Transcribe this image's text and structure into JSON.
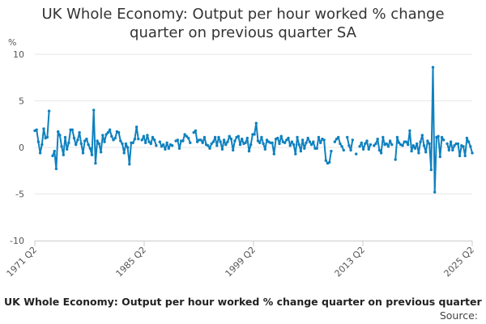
{
  "colors": {
    "series": "#0f81bf",
    "gridline": "#e6e6e6",
    "axis": "#cccccc",
    "tick_label": "#555555"
  },
  "footer": {
    "title": "UK Whole Economy: Output per hour worked % change quarter on previous quarter",
    "source_label": "Source:"
  },
  "chart_data": {
    "type": "line",
    "title": [
      "UK Whole Economy: Output per hour worked % change",
      "quarter on previous quarter SA"
    ],
    "ylabel": "%",
    "xlabel": "",
    "ylim": [
      -10,
      10
    ],
    "yticks": [
      10,
      5,
      0,
      -5,
      -10
    ],
    "x_tick_labels": [
      "1971 Q2",
      "1985 Q2",
      "1999 Q2",
      "2013 Q2",
      "2025 Q2"
    ],
    "x_start": "1971 Q2",
    "x_end": "2025 Q2",
    "grid": true,
    "legend": "none",
    "series": [
      {
        "values": [
          1.8,
          1.9,
          0.6,
          -0.6,
          0.3,
          2.0,
          1.0,
          1.1,
          3.9,
          null,
          -0.9,
          -0.4,
          -2.3,
          1.7,
          1.3,
          0.1,
          -0.8,
          1.1,
          -0.2,
          0.5,
          1.9,
          1.9,
          1.0,
          0.3,
          0.8,
          1.6,
          0.4,
          -0.6,
          0.7,
          0.9,
          0.3,
          -0.1,
          -0.8,
          4.0,
          -1.7,
          0.7,
          0.4,
          -0.5,
          1.3,
          0.6,
          1.4,
          1.6,
          1.9,
          1.2,
          0.8,
          1.0,
          1.7,
          1.6,
          0.7,
          0.4,
          -0.6,
          0.4,
          0.0,
          -1.8,
          0.5,
          0.5,
          0.9,
          2.2,
          0.9,
          null,
          0.8,
          1.2,
          0.5,
          1.3,
          0.6,
          0.4,
          1.1,
          0.8,
          0.2,
          null,
          0.6,
          0.1,
          0.3,
          -0.2,
          0.5,
          -0.1,
          0.3,
          0.2,
          null,
          0.7,
          0.8,
          -0.1,
          0.7,
          0.7,
          1.4,
          1.2,
          1.0,
          0.5,
          null,
          1.6,
          1.8,
          0.6,
          0.8,
          0.8,
          0.5,
          1.1,
          0.3,
          0.2,
          -0.1,
          0.4,
          0.6,
          1.1,
          0.2,
          1.1,
          0.6,
          -0.2,
          0.8,
          0.3,
          0.6,
          1.2,
          0.9,
          -0.3,
          0.7,
          1.1,
          1.2,
          0.3,
          0.9,
          0.4,
          0.5,
          1.0,
          -0.4,
          0.3,
          1.4,
          1.4,
          2.6,
          0.7,
          0.5,
          1.1,
          0.4,
          -0.2,
          0.8,
          0.6,
          0.5,
          0.5,
          -0.7,
          0.9,
          1.0,
          0.4,
          1.2,
          0.6,
          0.5,
          0.8,
          1.0,
          0.2,
          0.6,
          0.3,
          -0.7,
          1.1,
          0.3,
          -0.4,
          0.8,
          -0.1,
          0.5,
          1.0,
          0.6,
          0.3,
          0.6,
          -0.1,
          -0.1,
          1.1,
          0.5,
          0.9,
          0.8,
          -1.4,
          -1.7,
          -1.6,
          -0.4,
          null,
          0.6,
          0.9,
          1.1,
          0.4,
          0.1,
          -0.3,
          null,
          1.1,
          0.2,
          -0.3,
          0.8,
          null,
          -0.7,
          null,
          0.1,
          0.5,
          -0.2,
          0.4,
          0.7,
          -0.2,
          0.3,
          null,
          0.2,
          0.4,
          0.9,
          -0.3,
          -0.6,
          1.1,
          0.3,
          0.4,
          0.1,
          0.7,
          0.3,
          null,
          -1.3,
          1.1,
          0.5,
          0.3,
          0.2,
          0.6,
          0.6,
          0.3,
          1.8,
          -0.4,
          0.2,
          -0.1,
          0.4,
          -0.6,
          0.6,
          1.3,
          0.2,
          -0.5,
          0.7,
          0.4,
          -2.4,
          8.6,
          -4.8,
          1.1,
          1.2,
          -1.0,
          1.1,
          0.8,
          null,
          0.4,
          -0.3,
          0.6,
          -0.3,
          0.2,
          0.4,
          0.4,
          -0.9,
          0.2,
          0.1,
          -0.9,
          1.0,
          0.6,
          0.1,
          -0.6
        ]
      }
    ]
  }
}
